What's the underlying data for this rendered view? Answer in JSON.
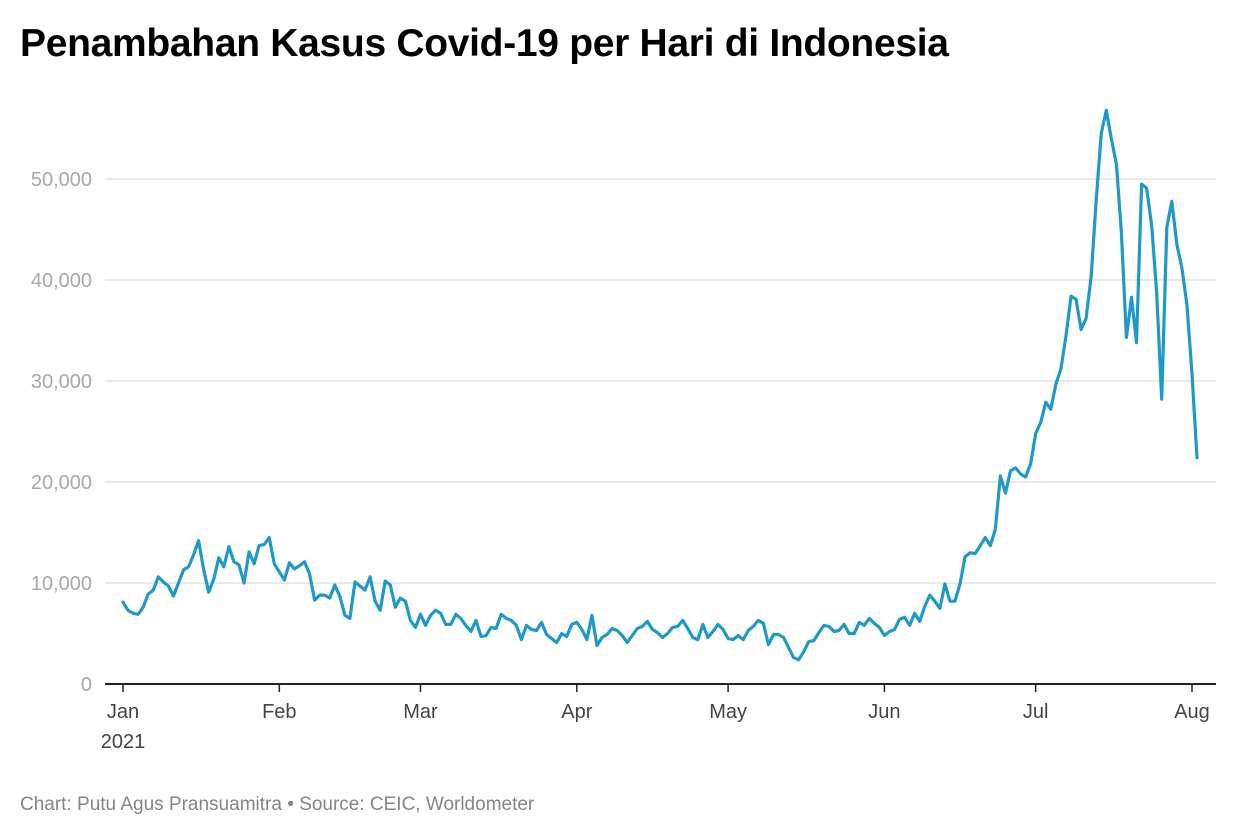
{
  "title": "Penambahan Kasus Covid-19 per Hari di Indonesia",
  "footer": {
    "credit": "Chart: Putu Agus Pransuamitra",
    "separator": " • ",
    "source": "Source: CEIC, Worldometer"
  },
  "colors": {
    "line": "#1f9ac8",
    "grid": "#e2e2e2",
    "axis": "#222222",
    "tick_text": "#a8a8a8",
    "month_text": "#444444"
  },
  "chart_data": {
    "type": "line",
    "title": "Penambahan Kasus Covid-19 per Hari di Indonesia",
    "xlabel": "",
    "ylabel": "",
    "ylim": [
      0,
      57000
    ],
    "y_ticks": [
      {
        "value": 0,
        "label": "0"
      },
      {
        "value": 10000,
        "label": "10,000"
      },
      {
        "value": 20000,
        "label": "20,000"
      },
      {
        "value": 30000,
        "label": "30,000"
      },
      {
        "value": 40000,
        "label": "40,000"
      },
      {
        "value": 50000,
        "label": "50,000"
      }
    ],
    "x_ticks": [
      {
        "date": "2021-01-01",
        "label": "Jan",
        "sublabel": "2021"
      },
      {
        "date": "2021-02-01",
        "label": "Feb"
      },
      {
        "date": "2021-03-01",
        "label": "Mar"
      },
      {
        "date": "2021-04-01",
        "label": "Apr"
      },
      {
        "date": "2021-05-01",
        "label": "May"
      },
      {
        "date": "2021-06-01",
        "label": "Jun"
      },
      {
        "date": "2021-07-01",
        "label": "Jul"
      },
      {
        "date": "2021-08-01",
        "label": "Aug"
      }
    ],
    "grid": true,
    "legend": "none",
    "series": [
      {
        "start_date": "2021-01-01",
        "values": [
          8100,
          7300,
          7000,
          6900,
          7600,
          8900,
          9300,
          10600,
          10100,
          9700,
          8700,
          10000,
          11300,
          11600,
          12800,
          14200,
          11300,
          9100,
          10400,
          12500,
          11600,
          13600,
          12100,
          11800,
          10000,
          13100,
          11900,
          13700,
          13800,
          14500,
          11900,
          11100,
          10300,
          12000,
          11400,
          11700,
          12100,
          10900,
          8300,
          8800,
          8800,
          8500,
          9800,
          8700,
          6800,
          6500,
          10100,
          9700,
          9300,
          10600,
          8200,
          7300,
          10200,
          9800,
          7600,
          8500,
          8200,
          6300,
          5600,
          6900,
          5800,
          6800,
          7300,
          7000,
          5900,
          5900,
          6900,
          6500,
          5800,
          5200,
          6300,
          4700,
          4800,
          5600,
          5500,
          6900,
          6500,
          6300,
          5800,
          4400,
          5800,
          5400,
          5300,
          6100,
          4900,
          4500,
          4100,
          5000,
          4700,
          5900,
          6100,
          5400,
          4400,
          6800,
          3800,
          4600,
          4900,
          5500,
          5300,
          4800,
          4100,
          4800,
          5500,
          5700,
          6200,
          5400,
          5100,
          4600,
          5000,
          5600,
          5700,
          6300,
          5500,
          4600,
          4400,
          5900,
          4600,
          5200,
          5900,
          5400,
          4500,
          4400,
          4800,
          4400,
          5300,
          5700,
          6300,
          6000,
          3900,
          4900,
          4900,
          4600,
          3600,
          2600,
          2400,
          3200,
          4200,
          4300,
          5100,
          5800,
          5700,
          5200,
          5300,
          5900,
          5000,
          5000,
          6100,
          5800,
          6500,
          6000,
          5600,
          4800,
          5200,
          5400,
          6400,
          6600,
          5800,
          7000,
          6200,
          7700,
          8800,
          8200,
          7500,
          9900,
          8200,
          8200,
          9900,
          12600,
          13000,
          12900,
          13700,
          14500,
          13700,
          15300,
          20600,
          18900,
          21100,
          21400,
          20800,
          20500,
          21800,
          24800,
          25900,
          27900,
          27200,
          29700,
          31200,
          34400,
          38400,
          38100,
          35100,
          36200,
          40400,
          47900,
          54500,
          56800,
          54000,
          51500,
          44700,
          34300,
          38300,
          33800,
          49500,
          49100,
          45400,
          38700,
          28200,
          45200,
          47800,
          43500,
          41200,
          37500,
          30700,
          22400
        ]
      }
    ]
  }
}
